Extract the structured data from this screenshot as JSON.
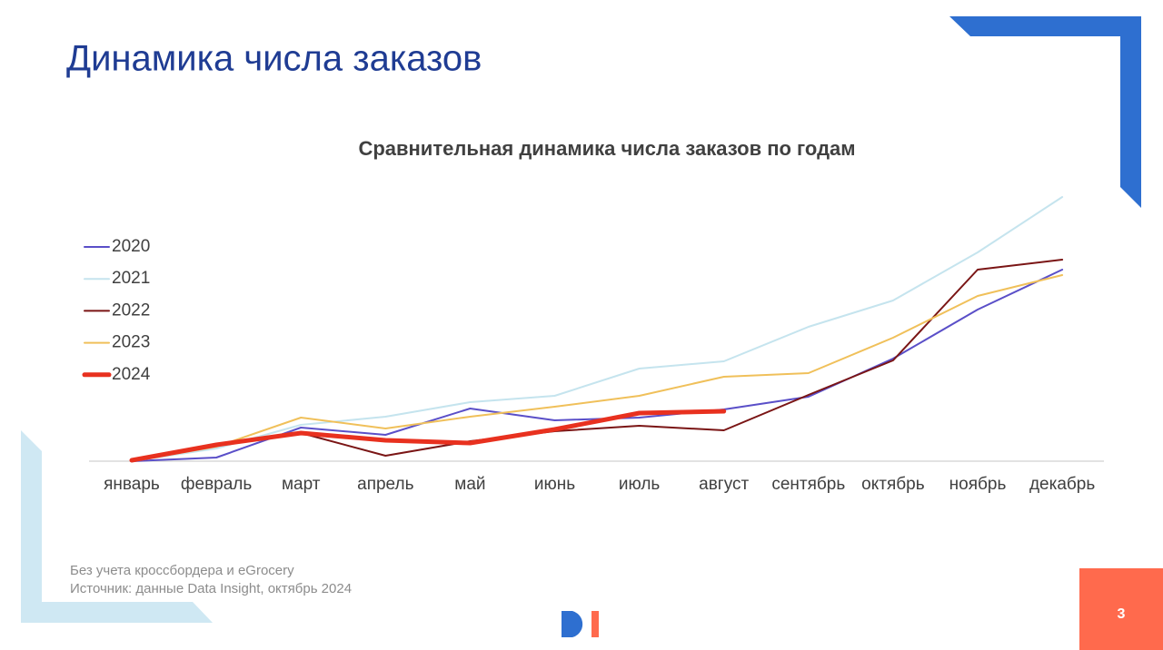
{
  "slide_title": "Динамика числа заказов",
  "notes": [
    "Без учета кроссбордера и eGrocery",
    "Источник: данные Data Insight, октябрь 2024"
  ],
  "page_number": "3",
  "chart_data": {
    "type": "line",
    "title": "Сравнительная динамика числа заказов по годам",
    "categories": [
      "январь",
      "февраль",
      "март",
      "апрель",
      "май",
      "июнь",
      "июль",
      "август",
      "сентябрь",
      "октябрь",
      "ноябрь",
      "декабрь"
    ],
    "ylim": [
      0,
      300
    ],
    "legend": "left",
    "series": [
      {
        "name": "2020",
        "color": "#5a4fc8",
        "width": 2,
        "values": [
          0,
          4,
          37,
          29,
          58,
          45,
          48,
          57,
          71,
          113,
          167,
          211
        ]
      },
      {
        "name": "2021",
        "color": "#c5e4ee",
        "width": 2,
        "values": [
          0,
          14,
          40,
          49,
          65,
          72,
          102,
          110,
          148,
          177,
          230,
          291
        ]
      },
      {
        "name": "2022",
        "color": "#7a1515",
        "width": 2,
        "values": [
          0,
          18,
          31,
          6,
          22,
          33,
          39,
          34,
          73,
          111,
          211,
          222
        ]
      },
      {
        "name": "2023",
        "color": "#f0c05a",
        "width": 2,
        "values": [
          0,
          16,
          48,
          36,
          49,
          60,
          72,
          93,
          97,
          136,
          182,
          205
        ]
      },
      {
        "name": "2024",
        "color": "#e8311f",
        "width": 5,
        "values": [
          1,
          18,
          31,
          23,
          20,
          35,
          53,
          55,
          null,
          null,
          null,
          null
        ]
      }
    ]
  }
}
